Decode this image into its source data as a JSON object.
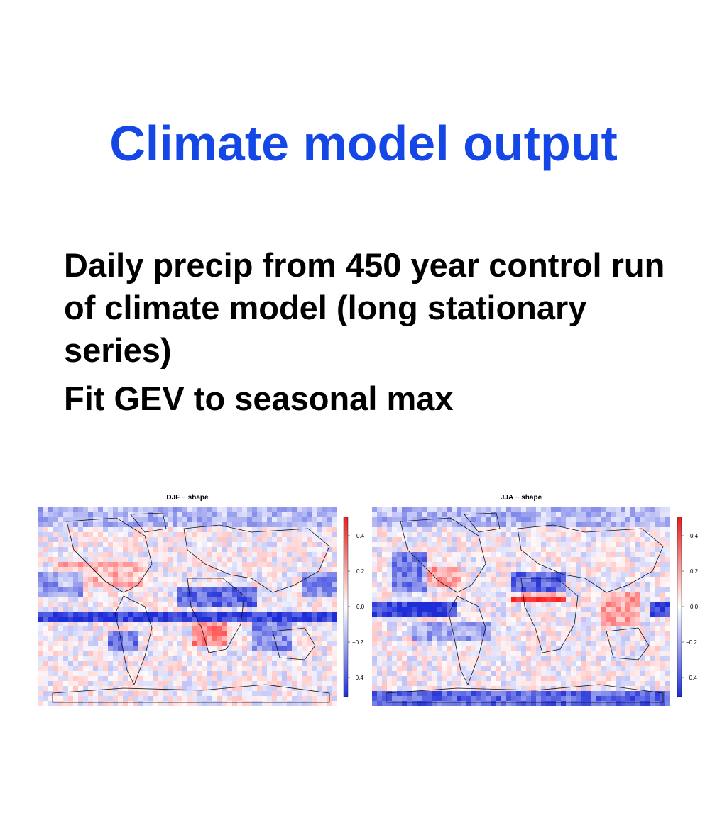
{
  "slide": {
    "title": "Climate model output",
    "bullets": [
      "Daily precip from 450 year control run of climate model (long stationary series)",
      "Fit GEV to seasonal max"
    ]
  },
  "maps": [
    {
      "title": "DJF − shape",
      "colorbar_ticks": [
        "0.4",
        "0.2",
        "0.0",
        "−0.2",
        "−0.4"
      ]
    },
    {
      "title": "JJA − shape",
      "colorbar_ticks": [
        "0.4",
        "0.2",
        "0.0",
        "−0.2",
        "−0.4"
      ]
    }
  ],
  "colors": {
    "title": "#1447e6",
    "positive": "#e02020",
    "negative": "#1e2fd6",
    "neutral": "#f2f2ff"
  }
}
